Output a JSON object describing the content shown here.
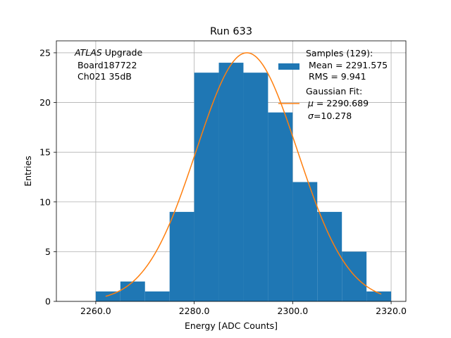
{
  "chart_data": {
    "type": "bar",
    "title": "Run 633",
    "xlabel": "Energy [ADC Counts]",
    "ylabel": "Entries",
    "xlim": [
      2252.0,
      2323.0
    ],
    "ylim": [
      0,
      26.2
    ],
    "xticks": [
      2260.0,
      2280.0,
      2300.0,
      2320.0
    ],
    "xtick_labels": [
      "2260.0",
      "2280.0",
      "2300.0",
      "2320.0"
    ],
    "yticks": [
      0,
      5,
      10,
      15,
      20,
      25
    ],
    "ytick_labels": [
      "0",
      "5",
      "10",
      "15",
      "20",
      "25"
    ],
    "grid": true,
    "bin_edges": [
      2260,
      2265,
      2270,
      2275,
      2280,
      2285,
      2290,
      2295,
      2300,
      2305,
      2310,
      2315,
      2320
    ],
    "counts": [
      1,
      2,
      1,
      9,
      23,
      24,
      23,
      19,
      12,
      9,
      5,
      1
    ],
    "bar_color": "#1f77b4",
    "fit_color": "#ff7f0e",
    "fit": {
      "type": "gaussian",
      "mu": 2290.689,
      "sigma": 10.278,
      "amplitude": 25.0,
      "x_range": [
        2262.0,
        2318.0
      ]
    },
    "annotation": {
      "italic": "ATLAS",
      "line1_rest": " Upgrade",
      "line2": " Board187722",
      "line3": " Ch021 35dB"
    },
    "legend": {
      "placement": "top-right",
      "hist_lines": [
        "Samples (129):",
        " Mean = 2291.575",
        " RMS = 9.941"
      ],
      "fit_line1": "Gaussian Fit:",
      "fit_mu_symbol": "μ",
      "fit_mu_value": " = 2290.689",
      "fit_sigma_symbol": "σ",
      "fit_sigma_value": "=10.278"
    }
  }
}
